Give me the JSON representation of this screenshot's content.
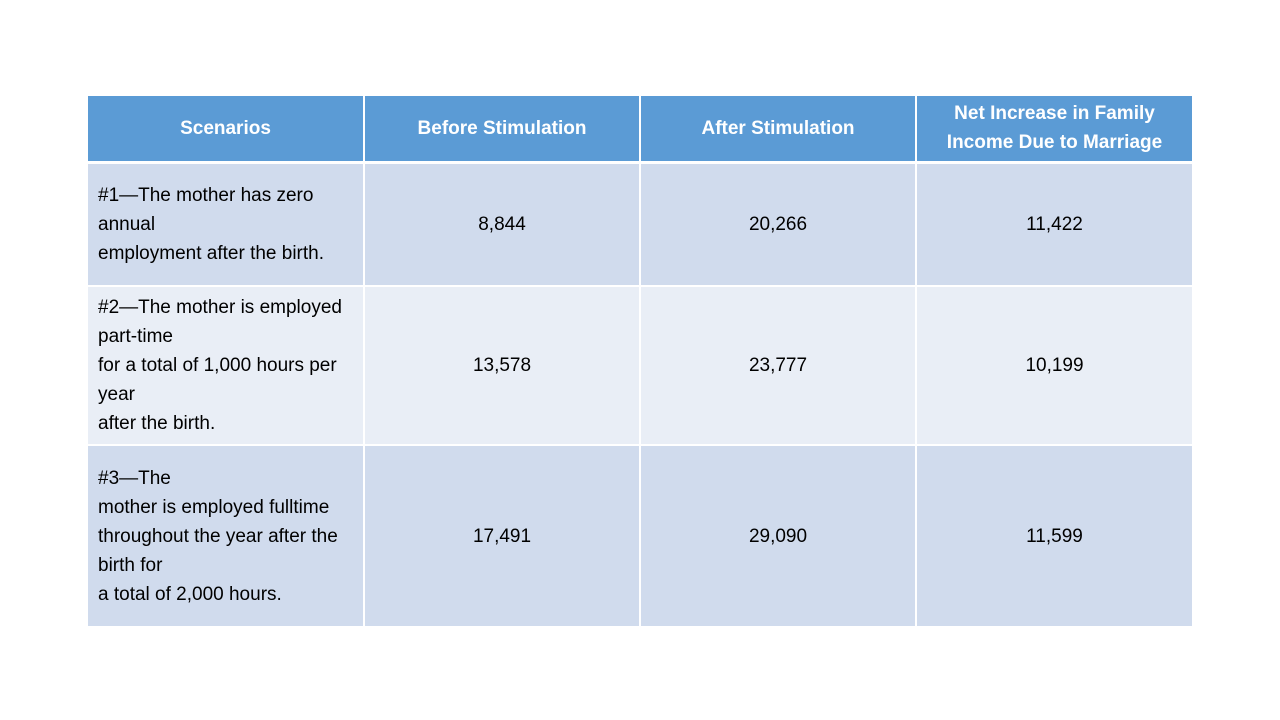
{
  "table": {
    "headers": [
      "Scenarios",
      "Before Stimulation",
      "After Stimulation",
      "Net Increase in Family Income Due to Marriage"
    ],
    "rows": [
      {
        "scenario_lines": [
          "#1—The mother has zero annual",
          "employment after the birth."
        ],
        "before": "8,844",
        "after": "20,266",
        "net": "11,422"
      },
      {
        "scenario_lines": [
          "#2—The mother is employed part-time",
          "for a total of 1,000 hours per year",
          "after the birth."
        ],
        "before": "13,578",
        "after": "23,777",
        "net": "10,199"
      },
      {
        "scenario_lines": [
          "#3—The",
          "mother is employed fulltime",
          "throughout the year after the birth for",
          "a total of 2,000 hours."
        ],
        "before": "17,491",
        "after": "29,090",
        "net": "11,599"
      }
    ]
  },
  "colors": {
    "header_bg": "#5b9bd5",
    "row_dark_bg": "#d0dbed",
    "row_light_bg": "#e9eef6"
  }
}
